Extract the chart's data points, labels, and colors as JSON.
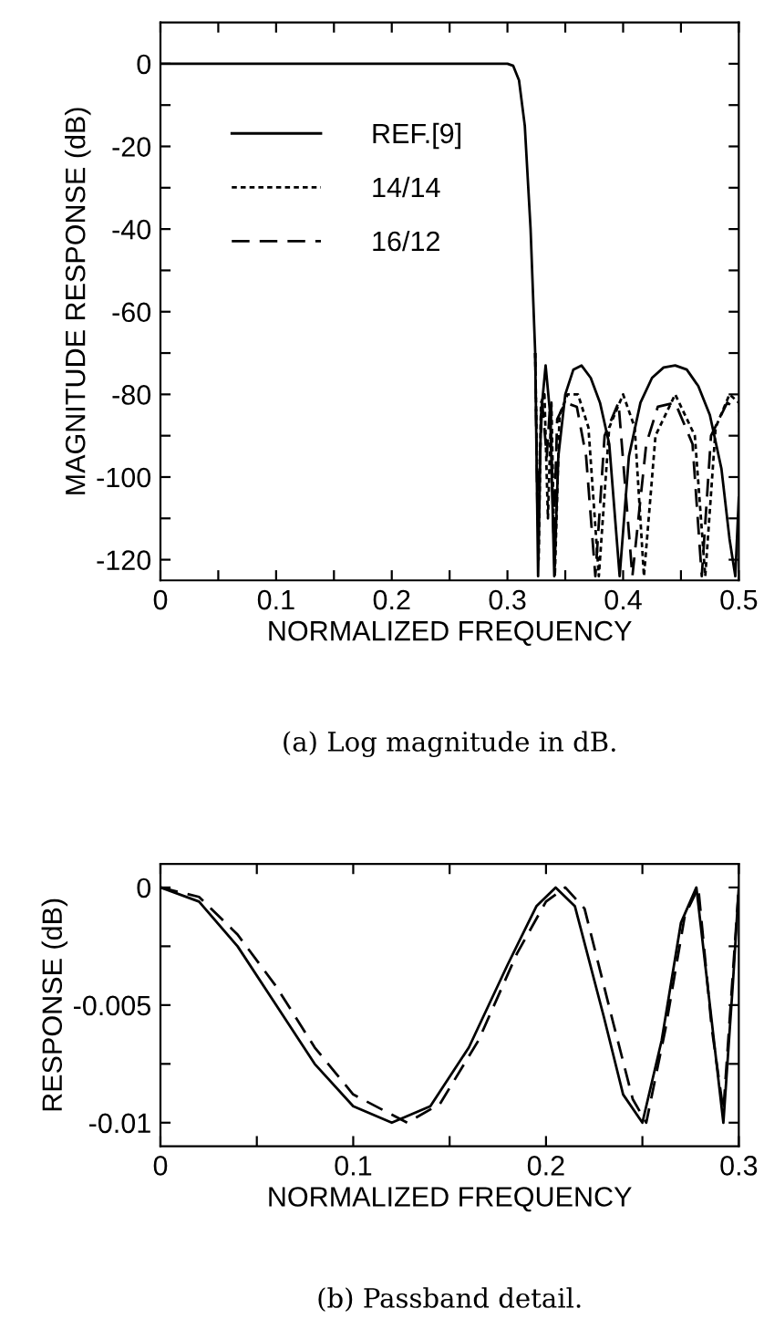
{
  "chart_data": [
    {
      "type": "line",
      "xlabel": "NORMALIZED FREQUENCY",
      "ylabel": "MAGNITUDE RESPONSE (dB)",
      "xlim": [
        0,
        0.5
      ],
      "ylim": [
        -125,
        10
      ],
      "xticks": [
        0,
        0.1,
        0.2,
        0.3,
        0.4,
        0.5,
        {
          "value": 0.05,
          "label": null
        },
        {
          "value": 0.15,
          "label": null
        },
        {
          "value": 0.25,
          "label": null
        },
        {
          "value": 0.35,
          "label": null
        },
        {
          "value": 0.45,
          "label": null
        }
      ],
      "yticks": [
        0,
        -20,
        -40,
        -60,
        -80,
        -100,
        -120,
        {
          "value": -10,
          "label": null
        },
        {
          "value": -30,
          "label": null
        },
        {
          "value": -50,
          "label": null
        },
        {
          "value": -70,
          "label": null
        },
        {
          "value": -90,
          "label": null
        },
        {
          "value": -110,
          "label": null
        }
      ],
      "legend": "center left",
      "annotations": [
        "(a) Log magnitude in dB."
      ],
      "series": [
        {
          "name": "REF.[9]",
          "color": "#000000",
          "line_style": "solid",
          "x": [
            0,
            0.3,
            0.305,
            0.31,
            0.315,
            0.32,
            0.324,
            0.3265,
            0.329,
            0.333,
            0.337,
            0.3405,
            0.344,
            0.35,
            0.357,
            0.364,
            0.372,
            0.38,
            0.388,
            0.397,
            0.405,
            0.415,
            0.425,
            0.435,
            0.445,
            0.455,
            0.465,
            0.475,
            0.485,
            0.492,
            0.497,
            0.5
          ],
          "values": [
            0,
            0,
            -0.5,
            -4,
            -15,
            -40,
            -70,
            -124,
            -85,
            -73,
            -85,
            -124,
            -95,
            -80,
            -74,
            -73,
            -76,
            -82,
            -92,
            -124,
            -95,
            -82,
            -76,
            -73.5,
            -73,
            -74,
            -78,
            -85,
            -98,
            -115,
            -124,
            -105
          ]
        },
        {
          "name": "14/14",
          "color": "#000000",
          "line_style": "dotted",
          "x": [
            0.324,
            0.327,
            0.329,
            0.332,
            0.335,
            0.338,
            0.341,
            0.345,
            0.352,
            0.361,
            0.37,
            0.379,
            0.388,
            0.4,
            0.41,
            0.418,
            0.428,
            0.445,
            0.462,
            0.471,
            0.48,
            0.492,
            0.5
          ],
          "values": [
            -70,
            -120,
            -82,
            -80,
            -110,
            -82,
            -124,
            -85,
            -80,
            -80,
            -88,
            -124,
            -88,
            -80,
            -88,
            -124,
            -90,
            -80,
            -90,
            -124,
            -88,
            -80,
            -82
          ]
        },
        {
          "name": "16/12",
          "color": "#000000",
          "line_style": "dashed",
          "x": [
            0.324,
            0.326,
            0.33,
            0.334,
            0.337,
            0.34,
            0.343,
            0.35,
            0.36,
            0.368,
            0.376,
            0.384,
            0.396,
            0.408,
            0.42,
            0.43,
            0.445,
            0.46,
            0.468,
            0.476,
            0.49,
            0.5
          ],
          "values": [
            -70,
            -110,
            -82,
            -95,
            -82,
            -115,
            -86,
            -82,
            -83,
            -95,
            -124,
            -90,
            -82,
            -124,
            -92,
            -83,
            -82,
            -92,
            -124,
            -90,
            -82,
            -84
          ]
        }
      ]
    },
    {
      "type": "line",
      "xlabel": "NORMALIZED FREQUENCY",
      "ylabel": "RESPONSE (dB)",
      "xlim": [
        0,
        0.3
      ],
      "ylim": [
        -0.011,
        0.001
      ],
      "xticks": [
        0,
        0.1,
        0.2,
        0.3,
        {
          "value": 0.05,
          "label": null
        },
        {
          "value": 0.15,
          "label": null
        },
        {
          "value": 0.25,
          "label": null
        }
      ],
      "yticks": [
        0,
        -0.005,
        -0.01,
        {
          "value": -0.0025,
          "label": null
        },
        {
          "value": -0.0075,
          "label": null
        }
      ],
      "annotations": [
        "(b) Passband detail."
      ],
      "series": [
        {
          "color": "#000000",
          "line_style": "solid",
          "x": [
            0,
            0.02,
            0.04,
            0.06,
            0.08,
            0.1,
            0.12,
            0.14,
            0.16,
            0.18,
            0.195,
            0.205,
            0.215,
            0.23,
            0.24,
            0.25,
            0.26,
            0.27,
            0.278,
            0.285,
            0.292,
            0.297,
            0.3
          ],
          "values": [
            0,
            -0.0006,
            -0.0025,
            -0.005,
            -0.0075,
            -0.0093,
            -0.01,
            -0.0093,
            -0.0068,
            -0.0033,
            -0.0008,
            0,
            -0.0008,
            -0.0055,
            -0.0088,
            -0.01,
            -0.0065,
            -0.0015,
            0,
            -0.005,
            -0.01,
            -0.004,
            0
          ]
        },
        {
          "color": "#000000",
          "line_style": "dashed",
          "x": [
            0,
            0.02,
            0.04,
            0.06,
            0.08,
            0.1,
            0.128,
            0.145,
            0.165,
            0.185,
            0.2,
            0.21,
            0.22,
            0.235,
            0.245,
            0.252,
            0.262,
            0.272,
            0.279,
            0.286,
            0.292,
            0.3
          ],
          "values": [
            0,
            -0.0004,
            -0.002,
            -0.0042,
            -0.0068,
            -0.0088,
            -0.01,
            -0.0092,
            -0.0065,
            -0.0028,
            -0.0006,
            0,
            -0.0009,
            -0.0058,
            -0.009,
            -0.01,
            -0.006,
            -0.0012,
            0,
            -0.006,
            -0.0095,
            0
          ]
        }
      ]
    }
  ]
}
